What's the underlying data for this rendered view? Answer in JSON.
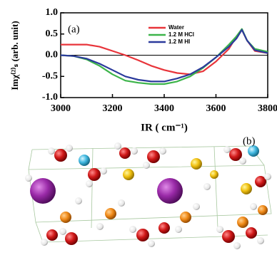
{
  "chart_data": {
    "type": "line",
    "annotation": "(a)",
    "ylabel": "Imχ⁽²⁾ₛ (arb. unit)",
    "xlabel": "IR ( cm⁻¹)",
    "x": [
      3000,
      3050,
      3100,
      3150,
      3200,
      3250,
      3300,
      3350,
      3400,
      3450,
      3500,
      3550,
      3600,
      3650,
      3680,
      3700,
      3720,
      3750,
      3800
    ],
    "series": [
      {
        "name": "Water",
        "color": "#e8343a",
        "values": [
          0.25,
          0.25,
          0.25,
          0.2,
          0.1,
          0.0,
          -0.12,
          -0.25,
          -0.35,
          -0.42,
          -0.45,
          -0.38,
          -0.15,
          0.15,
          0.45,
          0.6,
          0.35,
          0.1,
          0.05
        ]
      },
      {
        "name": "1.2 M HCl",
        "color": "#3cb44a",
        "values": [
          0.0,
          -0.02,
          -0.1,
          -0.25,
          -0.45,
          -0.6,
          -0.65,
          -0.68,
          -0.68,
          -0.62,
          -0.5,
          -0.3,
          -0.05,
          0.25,
          0.45,
          0.62,
          0.35,
          0.15,
          0.08
        ]
      },
      {
        "name": "1.2 M HI",
        "color": "#2b3a9c",
        "values": [
          0.0,
          -0.02,
          -0.08,
          -0.2,
          -0.35,
          -0.5,
          -0.58,
          -0.62,
          -0.62,
          -0.55,
          -0.45,
          -0.28,
          -0.05,
          0.2,
          0.4,
          0.6,
          0.35,
          0.12,
          0.05
        ]
      }
    ],
    "xlim": [
      3000,
      3800
    ],
    "xticks": [
      3000,
      3200,
      3400,
      3600,
      3800
    ],
    "ylim": [
      -1,
      1
    ],
    "yticks": [
      {
        "value": -1,
        "label": "-1.0"
      },
      {
        "value": -0.5,
        "label": "-0.5"
      },
      {
        "value": 0,
        "label": "0.0"
      },
      {
        "value": 0.5,
        "label": "0.5"
      },
      {
        "value": 1,
        "label": "1.0"
      }
    ],
    "reference_line": 0
  },
  "panel_b": {
    "label": "(b)"
  }
}
